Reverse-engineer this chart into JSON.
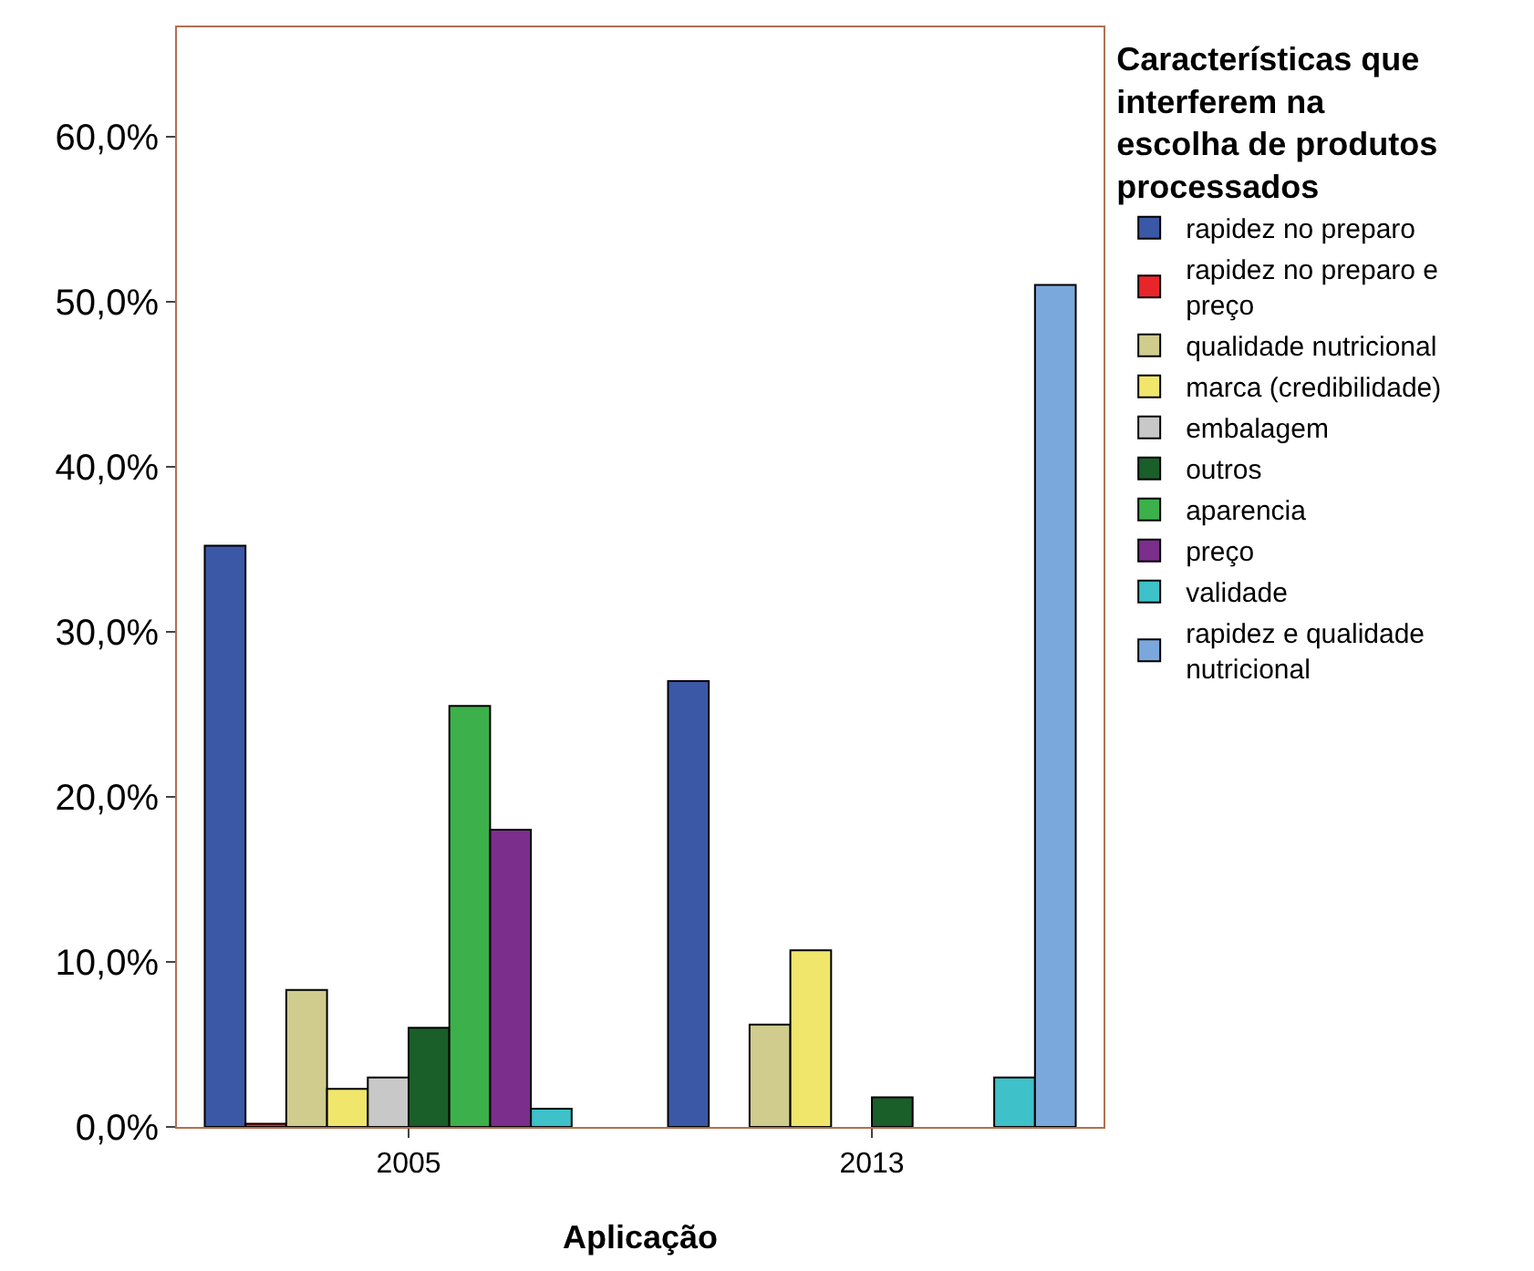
{
  "chart_data": {
    "type": "bar",
    "xlabel": "Aplicação",
    "legend_title": "Características que interferem na escolha de produtos processados",
    "categories": [
      "2005",
      "2013"
    ],
    "series": [
      {
        "name": "rapidez no preparo",
        "color": "#3b58a6",
        "values": [
          35.2,
          27.0
        ]
      },
      {
        "name": "rapidez no preparo e preço",
        "color": "#e8262a",
        "values": [
          0.2,
          null
        ]
      },
      {
        "name": "qualidade nutricional",
        "color": "#cfcc8e",
        "values": [
          8.3,
          6.2
        ]
      },
      {
        "name": "marca (credibilidade)",
        "color": "#f0e66b",
        "values": [
          2.3,
          10.7
        ]
      },
      {
        "name": "embalagem",
        "color": "#c8c8c8",
        "values": [
          3.0,
          null
        ]
      },
      {
        "name": "outros",
        "color": "#1a5e2a",
        "values": [
          6.0,
          1.8
        ]
      },
      {
        "name": "aparencia",
        "color": "#3cb04a",
        "values": [
          25.5,
          null
        ]
      },
      {
        "name": "preço",
        "color": "#7b2e8c",
        "values": [
          18.0,
          null
        ]
      },
      {
        "name": "validade",
        "color": "#3ec1c9",
        "values": [
          1.1,
          3.0
        ]
      },
      {
        "name": "rapidez e qualidade nutricional",
        "color": "#7ba8dc",
        "values": [
          null,
          51.0
        ]
      }
    ],
    "ylim": [
      0,
      66.6
    ],
    "yticks": [
      {
        "value": 0,
        "label": "0,0%"
      },
      {
        "value": 10,
        "label": "10,0%"
      },
      {
        "value": 20,
        "label": "20,0%"
      },
      {
        "value": 30,
        "label": "30,0%"
      },
      {
        "value": 40,
        "label": "40,0%"
      },
      {
        "value": 50,
        "label": "50,0%"
      },
      {
        "value": 60,
        "label": "60,0%"
      }
    ],
    "legend": "right"
  }
}
